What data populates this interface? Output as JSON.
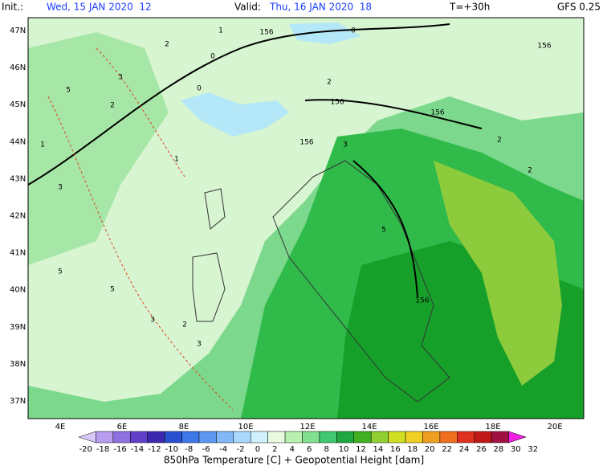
{
  "header": {
    "init_label": "Init.:",
    "init_value": "Wed, 15 JAN 2020  12",
    "valid_label": "Valid:",
    "valid_value": "Thu, 16 JAN 2020  18",
    "step": "T=+30h",
    "model": "GFS 0.25"
  },
  "axes": {
    "lat_labels": [
      "47N",
      "46N",
      "45N",
      "44N",
      "43N",
      "42N",
      "41N",
      "40N",
      "39N",
      "38N",
      "37N"
    ],
    "lon_labels": [
      "4E",
      "6E",
      "8E",
      "10E",
      "12E",
      "14E",
      "16E",
      "18E",
      "20E"
    ]
  },
  "colorbar": {
    "labels": [
      "-20",
      "-18",
      "-16",
      "-14",
      "-12",
      "-10",
      "-8",
      "-6",
      "-4",
      "-2",
      "0",
      "2",
      "4",
      "6",
      "8",
      "10",
      "12",
      "14",
      "16",
      "18",
      "20",
      "22",
      "24",
      "26",
      "28",
      "30",
      "32"
    ],
    "title": "850hPa Temperature [C] + Geopotential Height [dam]"
  },
  "contour_labels": [
    "156",
    "156",
    "156",
    "156",
    "156",
    "156",
    "5",
    "5",
    "5",
    "5",
    "3",
    "3",
    "3",
    "3",
    "3",
    "2",
    "2",
    "2",
    "2",
    "2",
    "2",
    "0",
    "0",
    "0",
    "1",
    "1",
    "1"
  ]
}
